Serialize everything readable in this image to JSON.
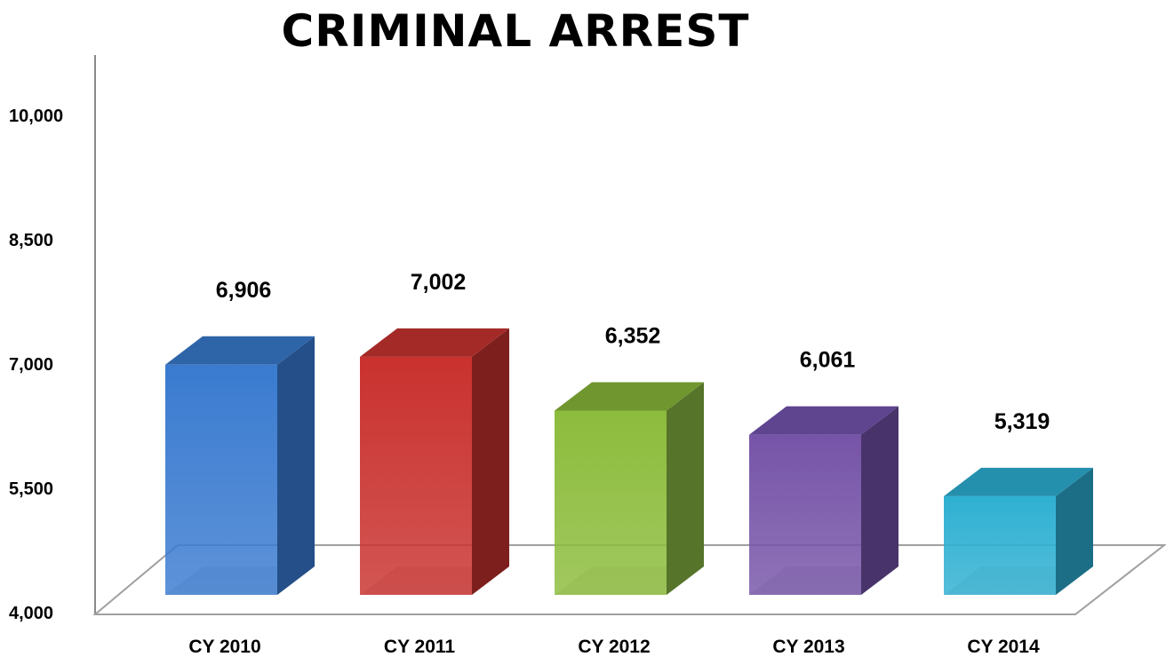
{
  "chart_data": {
    "type": "bar",
    "title": "CRIMINAL ARREST",
    "xlabel": "",
    "ylabel": "",
    "categories": [
      "CY 2010",
      "CY 2011",
      "CY 2012",
      "CY 2013",
      "CY 2014"
    ],
    "values": [
      6906,
      7002,
      6352,
      6061,
      5319
    ],
    "data_labels": [
      "6,906",
      "7,002",
      "6,352",
      "6,061",
      "5,319"
    ],
    "ylim": [
      4000,
      10000
    ],
    "yticks": [
      4000,
      5500,
      7000,
      8500,
      10000
    ],
    "ytick_labels": [
      "4,000",
      "5,500",
      "7,000",
      "8,500",
      "10,000"
    ],
    "grid": false,
    "legend": "none",
    "colors": [
      "#3a7bd0",
      "#c9312e",
      "#8cbc3c",
      "#7654a8",
      "#2fb0d2"
    ],
    "side_colors": [
      "#244f88",
      "#7c1f1d",
      "#56742a",
      "#48346a",
      "#1c6e86"
    ],
    "top_colors": [
      "#2e64a8",
      "#a42a27",
      "#70962f",
      "#5f4490",
      "#2590ad"
    ]
  }
}
